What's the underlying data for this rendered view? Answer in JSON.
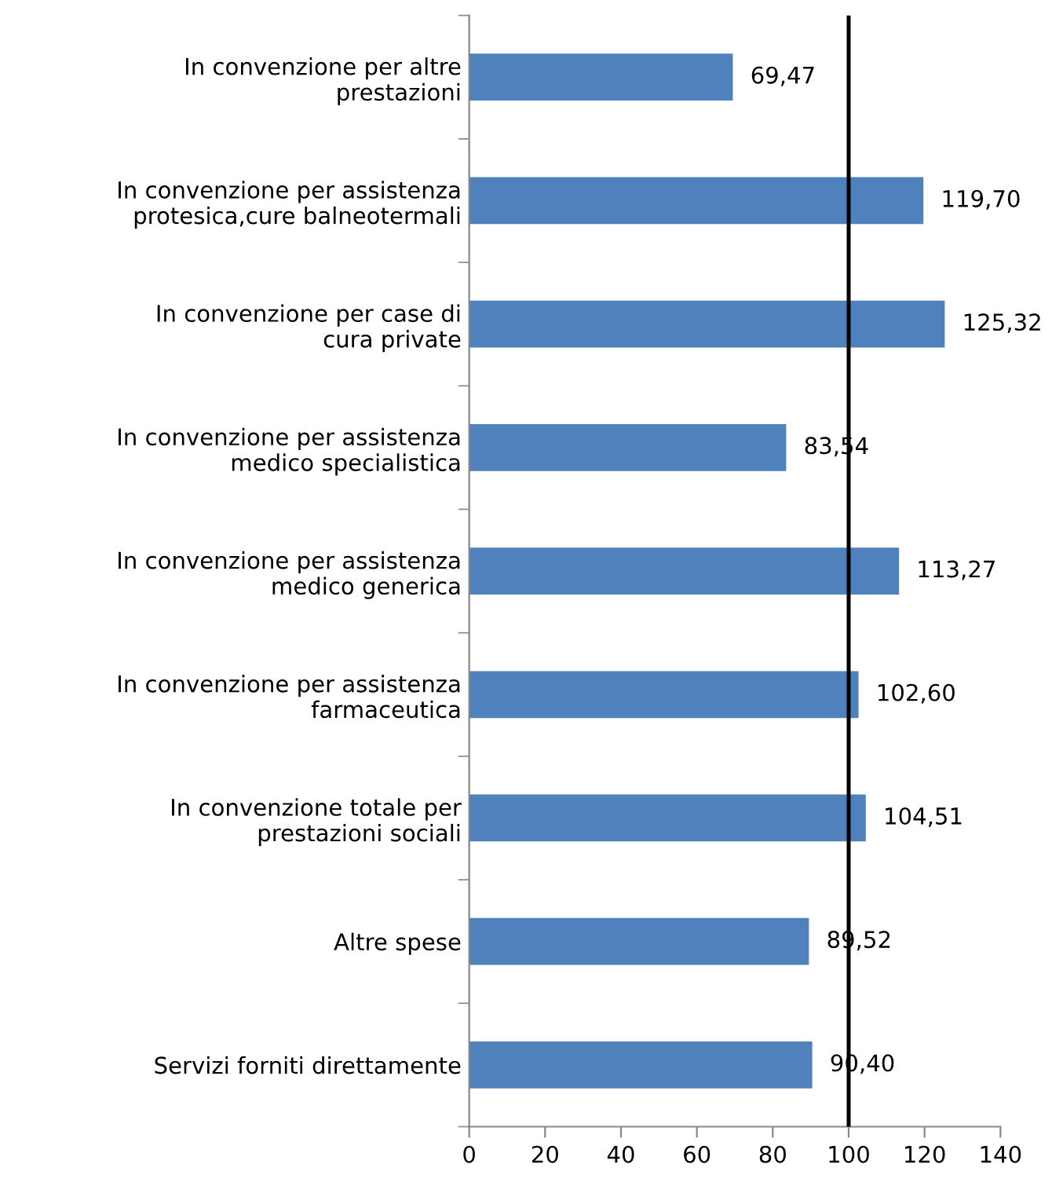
{
  "chart_data": {
    "type": "bar",
    "orientation": "horizontal",
    "categories": [
      "In convenzione per altre prestazioni",
      "In convenzione per assistenza protesica,cure balneotermali",
      "In convenzione per case di cura private",
      "In convenzione per assistenza medico specialistica",
      "In convenzione per assistenza medico generica",
      "In convenzione per assistenza farmaceutica",
      "In convenzione totale per prestazioni sociali",
      "Altre spese",
      "Servizi forniti direttamente"
    ],
    "values": [
      69.47,
      119.7,
      125.32,
      83.54,
      113.27,
      102.6,
      104.51,
      89.52,
      90.4
    ],
    "value_labels": [
      "69,47",
      "119,70",
      "125,32",
      "83,54",
      "113,27",
      "102,60",
      "104,51",
      "89,52",
      "90,40"
    ],
    "color": "#4f81bd",
    "xlim": [
      0,
      140
    ],
    "xticks": [
      0,
      20,
      40,
      60,
      80,
      100,
      120,
      140
    ],
    "ref_lines": [
      {
        "axis": "x",
        "value": 100,
        "color": "#000000"
      }
    ],
    "grid": false,
    "legend": false
  }
}
